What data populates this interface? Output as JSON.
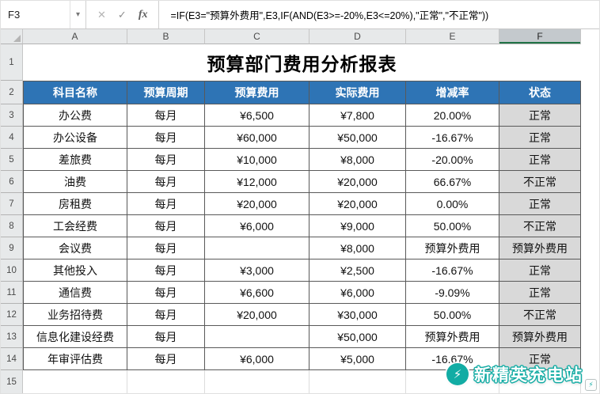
{
  "formula_bar": {
    "name_box": "F3",
    "dropdown_icon": "▾",
    "cancel_icon": "✕",
    "enter_icon": "✓",
    "fx_icon": "fx",
    "formula": "=IF(E3=\"预算外费用\",E3,IF(AND(E3>=-20%,E3<=20%),\"正常\",\"不正常\"))"
  },
  "grid": {
    "columns": [
      "A",
      "B",
      "C",
      "D",
      "E",
      "F"
    ],
    "active_column": "F",
    "row_nums": [
      "1",
      "2",
      "3",
      "4",
      "5",
      "6",
      "7",
      "8",
      "9",
      "10",
      "11",
      "12",
      "13",
      "14",
      "15"
    ]
  },
  "table": {
    "title": "预算部门费用分析报表",
    "headers": [
      "科目名称",
      "预算周期",
      "预算费用",
      "实际费用",
      "增减率",
      "状态"
    ],
    "rows": [
      [
        "办公费",
        "每月",
        "¥6,500",
        "¥7,800",
        "20.00%",
        "正常"
      ],
      [
        "办公设备",
        "每月",
        "¥60,000",
        "¥50,000",
        "-16.67%",
        "正常"
      ],
      [
        "差旅费",
        "每月",
        "¥10,000",
        "¥8,000",
        "-20.00%",
        "正常"
      ],
      [
        "油费",
        "每月",
        "¥12,000",
        "¥20,000",
        "66.67%",
        "不正常"
      ],
      [
        "房租费",
        "每月",
        "¥20,000",
        "¥20,000",
        "0.00%",
        "正常"
      ],
      [
        "工会经费",
        "每月",
        "¥6,000",
        "¥9,000",
        "50.00%",
        "不正常"
      ],
      [
        "会议费",
        "每月",
        "",
        "¥8,000",
        "预算外费用",
        "预算外费用"
      ],
      [
        "其他投入",
        "每月",
        "¥3,000",
        "¥2,500",
        "-16.67%",
        "正常"
      ],
      [
        "通信费",
        "每月",
        "¥6,600",
        "¥6,000",
        "-9.09%",
        "正常"
      ],
      [
        "业务招待费",
        "每月",
        "¥20,000",
        "¥30,000",
        "50.00%",
        "不正常"
      ],
      [
        "信息化建设经费",
        "每月",
        "",
        "¥50,000",
        "预算外费用",
        "预算外费用"
      ],
      [
        "年审评估费",
        "每月",
        "¥6,000",
        "¥5,000",
        "-16.67%",
        "正常"
      ]
    ]
  },
  "watermark": {
    "text": "新精英充电站",
    "bolt_icon": "⚡"
  },
  "colors": {
    "header_blue": "#2E74B5",
    "status_grey": "#D9D9D9",
    "accent_green": "#217346",
    "watermark_teal": "#12ACA4"
  }
}
